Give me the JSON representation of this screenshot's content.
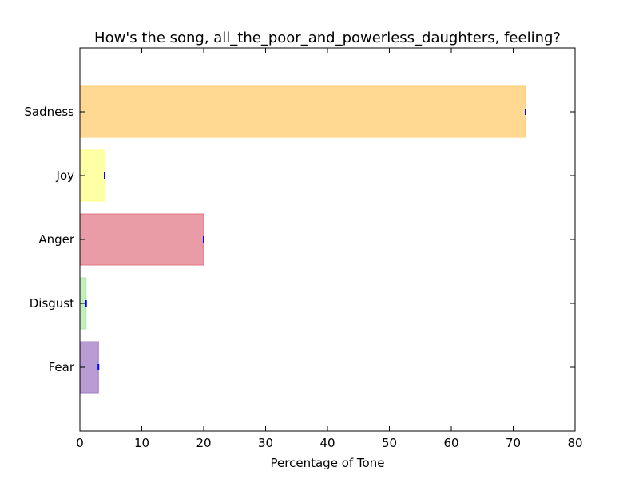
{
  "chart_data": {
    "type": "bar",
    "orientation": "horizontal",
    "title": "How's the song, all_the_poor_and_powerless_daughters, feeling?",
    "xlabel": "Percentage of Tone",
    "ylabel": "",
    "xlim": [
      0,
      80
    ],
    "xticks": [
      0,
      10,
      20,
      30,
      40,
      50,
      60,
      70,
      80
    ],
    "grid": false,
    "categories": [
      "Fear",
      "Disgust",
      "Anger",
      "Joy",
      "Sadness"
    ],
    "values": [
      3,
      1,
      20,
      4,
      72
    ],
    "colors": [
      "#9b72c0",
      "#a8e8a0",
      "#e07080",
      "#ffff80",
      "#ffc864"
    ],
    "edge_colors": [
      "#9b72c0",
      "#a8e8a0",
      "#e07080",
      "#ffff80",
      "#ffc864"
    ],
    "error_marker_color": "#0000ff"
  }
}
